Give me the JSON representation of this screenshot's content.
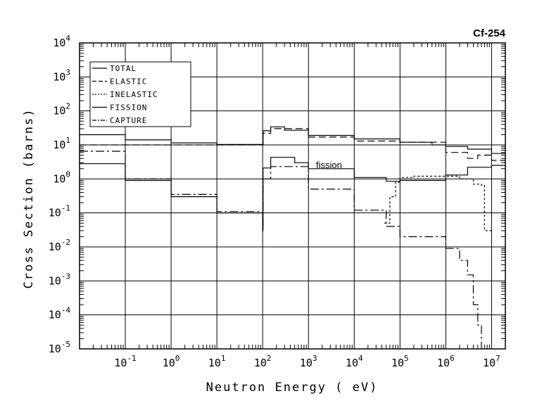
{
  "chart_data": {
    "type": "line",
    "title": "Cf-254",
    "xlabel": "Neutron Energy ( eV)",
    "ylabel": "Cross Section (barns)",
    "x_scale": "log",
    "y_scale": "log",
    "xlim": [
      0.01,
      20000000
    ],
    "ylim": [
      1e-05,
      10000
    ],
    "grid": true,
    "legend_position": "top-left",
    "annotation": "fission",
    "x_ticks": [
      {
        "base": "10",
        "exp": "-1",
        "value": 0.1
      },
      {
        "base": "10",
        "exp": "0",
        "value": 1
      },
      {
        "base": "10",
        "exp": "1",
        "value": 10
      },
      {
        "base": "10",
        "exp": "2",
        "value": 100
      },
      {
        "base": "10",
        "exp": "3",
        "value": 1000
      },
      {
        "base": "10",
        "exp": "4",
        "value": 10000
      },
      {
        "base": "10",
        "exp": "5",
        "value": 100000
      },
      {
        "base": "10",
        "exp": "6",
        "value": 1000000
      },
      {
        "base": "10",
        "exp": "7",
        "value": 10000000
      }
    ],
    "y_ticks": [
      {
        "base": "10",
        "exp": "4",
        "value": 10000
      },
      {
        "base": "10",
        "exp": "3",
        "value": 1000
      },
      {
        "base": "10",
        "exp": "2",
        "value": 100
      },
      {
        "base": "10",
        "exp": "1",
        "value": 10
      },
      {
        "base": "10",
        "exp": "0",
        "value": 1
      },
      {
        "base": "10",
        "exp": "-1",
        "value": 0.1
      },
      {
        "base": "10",
        "exp": "-2",
        "value": 0.01
      },
      {
        "base": "10",
        "exp": "-3",
        "value": 0.001
      },
      {
        "base": "10",
        "exp": "-4",
        "value": 0.0001
      },
      {
        "base": "10",
        "exp": "-5",
        "value": 1e-05
      }
    ],
    "series": [
      {
        "name": "TOTAL",
        "dash": "",
        "points": [
          [
            0.01,
            20
          ],
          [
            0.1,
            14
          ],
          [
            1,
            11.5
          ],
          [
            10,
            10.3
          ],
          [
            100,
            10
          ],
          [
            102,
            26
          ],
          [
            150,
            34
          ],
          [
            300,
            27
          ],
          [
            1000,
            19
          ],
          [
            10000,
            15
          ],
          [
            100000,
            12
          ],
          [
            500000,
            10
          ],
          [
            1000000,
            9
          ],
          [
            3000000,
            7.5
          ],
          [
            10000000,
            5.6
          ],
          [
            20000000,
            5.5
          ]
        ]
      },
      {
        "name": "ELASTIC",
        "dash": "10,5",
        "points": [
          [
            0.01,
            10
          ],
          [
            1,
            10
          ],
          [
            100,
            10
          ],
          [
            102,
            22
          ],
          [
            150,
            30
          ],
          [
            1000,
            17
          ],
          [
            10000,
            13
          ],
          [
            100000,
            12
          ],
          [
            1000000,
            6
          ],
          [
            3000000,
            4
          ],
          [
            5000000,
            5
          ],
          [
            10000000,
            3.5
          ],
          [
            20000000,
            2.5
          ]
        ]
      },
      {
        "name": "INELASTIC",
        "dash": "3,3",
        "points": [
          [
            45000,
            0.05
          ],
          [
            60000,
            0.3
          ],
          [
            80000,
            0.8
          ],
          [
            100000,
            1.1
          ],
          [
            200000,
            1.2
          ],
          [
            1000000,
            1.2
          ],
          [
            2000000,
            1
          ],
          [
            4000000,
            0.7
          ],
          [
            6000000,
            0.65
          ],
          [
            7000000,
            0.03
          ],
          [
            10000000,
            0.03
          ]
        ]
      },
      {
        "name": "FISSION",
        "dash": "",
        "points": [
          [
            0.01,
            2.8
          ],
          [
            0.1,
            0.9
          ],
          [
            1,
            0.3
          ],
          [
            10,
            0.1
          ],
          [
            100,
            0.03
          ],
          [
            102,
            2.1
          ],
          [
            150,
            4.3
          ],
          [
            500,
            3
          ],
          [
            1000,
            2
          ],
          [
            10000,
            1.1
          ],
          [
            50000,
            0.85
          ],
          [
            100000,
            0.9
          ],
          [
            1000000,
            1.3
          ],
          [
            3000000,
            2.2
          ],
          [
            10000000,
            2.5
          ],
          [
            20000000,
            2.6
          ]
        ]
      },
      {
        "name": "CAPTURE",
        "dash": "12,4,3,4",
        "points": [
          [
            0.01,
            6.5
          ],
          [
            0.1,
            1
          ],
          [
            1,
            0.35
          ],
          [
            10,
            0.11
          ],
          [
            100,
            0.04
          ],
          [
            102,
            1
          ],
          [
            150,
            2.3
          ],
          [
            1000,
            0.5
          ],
          [
            10000,
            0.12
          ],
          [
            50000,
            0.04
          ],
          [
            100000,
            0.02
          ],
          [
            1000000,
            0.009
          ],
          [
            2000000,
            0.004
          ],
          [
            3000000,
            0.0015
          ],
          [
            4000000,
            0.0002
          ],
          [
            5000000,
            5e-05
          ],
          [
            6000000,
            1e-05
          ]
        ]
      }
    ]
  }
}
